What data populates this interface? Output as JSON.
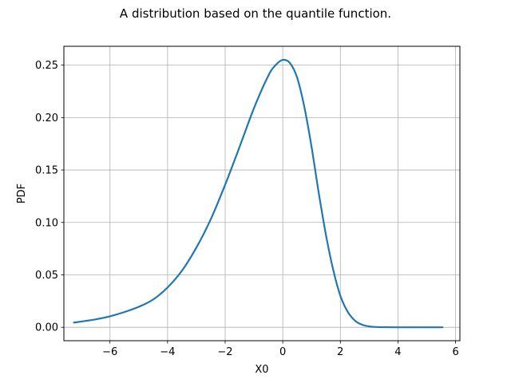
{
  "chart_data": {
    "type": "line",
    "title": "A distribution based on the quantile function.",
    "xlabel": "X0",
    "ylabel": "PDF",
    "xlim": [
      -7.6,
      6.15
    ],
    "ylim": [
      -0.0128,
      0.268
    ],
    "grid": true,
    "x_ticks": [
      -6,
      -4,
      -2,
      0,
      2,
      4,
      6
    ],
    "x_tick_labels": [
      "−6",
      "−4",
      "−2",
      "0",
      "2",
      "4",
      "6"
    ],
    "y_ticks": [
      0.0,
      0.05,
      0.1,
      0.15,
      0.2,
      0.25
    ],
    "y_tick_labels": [
      "0.00",
      "0.05",
      "0.10",
      "0.15",
      "0.20",
      "0.25"
    ],
    "series": [
      {
        "color": "#1f77b4",
        "x": [
          -7.25,
          -6.5,
          -6.0,
          -5.5,
          -5.0,
          -4.5,
          -4.0,
          -3.5,
          -3.0,
          -2.5,
          -2.0,
          -1.5,
          -1.0,
          -0.5,
          -0.25,
          0.0,
          0.25,
          0.5,
          0.75,
          1.0,
          1.25,
          1.5,
          1.75,
          2.0,
          2.25,
          2.5,
          2.75,
          3.0,
          3.25,
          3.5,
          4.0,
          5.0,
          5.55
        ],
        "y": [
          0.0045,
          0.0075,
          0.0105,
          0.0145,
          0.0195,
          0.0265,
          0.038,
          0.054,
          0.076,
          0.103,
          0.136,
          0.172,
          0.209,
          0.24,
          0.25,
          0.255,
          0.252,
          0.238,
          0.21,
          0.172,
          0.128,
          0.088,
          0.055,
          0.03,
          0.015,
          0.0065,
          0.0025,
          0.0008,
          0.0003,
          0.0001,
          0.0,
          0.0,
          0.0
        ]
      }
    ]
  }
}
